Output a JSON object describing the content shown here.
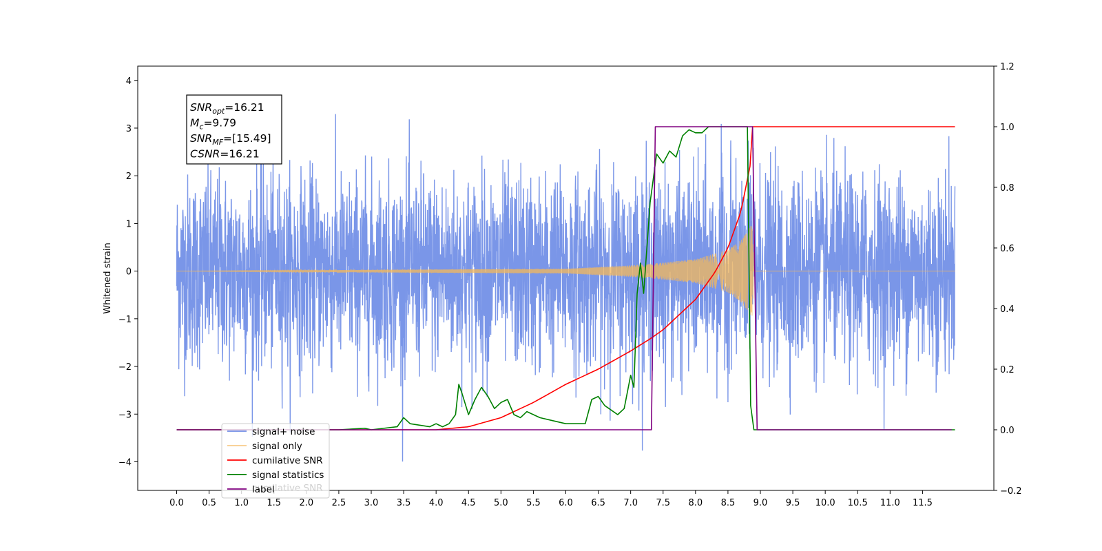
{
  "chart_data": {
    "type": "line",
    "ylabel": "Whitened strain",
    "xlim": [
      -0.6,
      12.6
    ],
    "ylim": [
      -4.6,
      4.3
    ],
    "y2lim": [
      -0.2,
      1.2
    ],
    "x_ticks": [
      0.0,
      0.5,
      1.0,
      1.5,
      2.0,
      2.5,
      3.0,
      3.5,
      4.0,
      4.5,
      5.0,
      5.5,
      6.0,
      6.5,
      7.0,
      7.5,
      8.0,
      8.5,
      9.0,
      9.5,
      10.0,
      10.5,
      11.0,
      11.5
    ],
    "x_tick_labels": [
      "0.0",
      "0.5",
      "1.0",
      "1.5",
      "2.0",
      "2.5",
      "3.0",
      "3.5",
      "4.0",
      "4.5",
      "5.0",
      "5.5",
      "6.0",
      "6.5",
      "7.0",
      "7.5",
      "8.0",
      "8.5",
      "9.0",
      "9.5",
      "10.0",
      "10.5",
      "11.0",
      "11.5"
    ],
    "y_ticks": [
      -4,
      -3,
      -2,
      -1,
      0,
      1,
      2,
      3,
      4
    ],
    "y_tick_labels": [
      "−4",
      "−3",
      "−2",
      "−1",
      "0",
      "1",
      "2",
      "3",
      "4"
    ],
    "y2_ticks": [
      -0.2,
      0.0,
      0.2,
      0.4,
      0.6,
      0.8,
      1.0,
      1.2
    ],
    "y2_tick_labels": [
      "−0.2",
      "0.0",
      "0.2",
      "0.4",
      "0.6",
      "0.8",
      "1.0",
      "1.2"
    ],
    "legend_placement": "lower-left",
    "grid": false,
    "series": [
      {
        "name": "signal+ noise",
        "axis": "left",
        "color": "#6f8de6",
        "noise_sigma": 1.0,
        "noise_range": [
          -4.1,
          3.85
        ],
        "x_range": [
          0.0,
          12.0
        ],
        "chirp": {
          "start": 4.0,
          "merger": 8.88,
          "peak_amplitude": 1.0
        }
      },
      {
        "name": "signal only",
        "axis": "left",
        "color": "#f5b85a",
        "x_range": [
          0.0,
          12.0
        ],
        "chirp": {
          "start": 4.0,
          "merger": 8.88,
          "peak_amplitude": 1.0
        },
        "amplitude_envelope": {
          "x": [
            0,
            6.0,
            7.0,
            7.5,
            8.0,
            8.5,
            8.7,
            8.88,
            8.9,
            12.0
          ],
          "y": [
            0.0,
            0.05,
            0.12,
            0.18,
            0.25,
            0.45,
            0.65,
            1.0,
            0.0,
            0.0
          ]
        }
      },
      {
        "name": "cumilative SNR",
        "axis": "right",
        "color": "#ff0000",
        "x": [
          0.0,
          4.0,
          4.5,
          5.0,
          5.5,
          6.0,
          6.5,
          7.0,
          7.3,
          7.5,
          8.0,
          8.3,
          8.5,
          8.7,
          8.85,
          8.88,
          12.0
        ],
        "y": [
          0.0,
          0.0,
          0.01,
          0.04,
          0.09,
          0.15,
          0.2,
          0.26,
          0.3,
          0.33,
          0.43,
          0.52,
          0.6,
          0.72,
          0.88,
          1.0,
          1.0
        ]
      },
      {
        "name": "signal statistics",
        "axis": "right",
        "color": "#008000",
        "x": [
          0.0,
          2.5,
          2.9,
          3.0,
          3.4,
          3.5,
          3.6,
          3.9,
          4.0,
          4.1,
          4.2,
          4.3,
          4.35,
          4.4,
          4.5,
          4.6,
          4.7,
          4.8,
          4.9,
          5.0,
          5.1,
          5.2,
          5.3,
          5.4,
          5.5,
          5.6,
          5.8,
          6.0,
          6.3,
          6.4,
          6.5,
          6.6,
          6.8,
          6.9,
          7.0,
          7.05,
          7.1,
          7.15,
          7.2,
          7.3,
          7.4,
          7.5,
          7.6,
          7.7,
          7.8,
          7.9,
          8.0,
          8.1,
          8.2,
          8.3,
          8.4,
          8.5,
          8.6,
          8.7,
          8.8,
          8.85,
          8.9,
          9.0,
          12.0
        ],
        "y": [
          0.0,
          0.0,
          0.005,
          0.0,
          0.01,
          0.04,
          0.02,
          0.01,
          0.02,
          0.01,
          0.02,
          0.05,
          0.15,
          0.12,
          0.05,
          0.1,
          0.14,
          0.11,
          0.07,
          0.09,
          0.1,
          0.05,
          0.04,
          0.06,
          0.05,
          0.04,
          0.03,
          0.02,
          0.02,
          0.1,
          0.11,
          0.08,
          0.05,
          0.07,
          0.18,
          0.14,
          0.45,
          0.55,
          0.45,
          0.75,
          0.91,
          0.88,
          0.92,
          0.9,
          0.97,
          0.99,
          0.98,
          0.98,
          1.0,
          1.0,
          1.0,
          1.0,
          1.0,
          1.0,
          1.0,
          0.08,
          0.0,
          0.0,
          0.0
        ]
      },
      {
        "name": "label",
        "axis": "right",
        "color": "#800080",
        "x": [
          0.0,
          7.32,
          7.38,
          8.88,
          8.95,
          11.95
        ],
        "y": [
          0.0,
          0.0,
          1.0,
          1.0,
          0.0,
          0.0
        ]
      }
    ],
    "annotation": {
      "lines": [
        {
          "sym": "SNR",
          "sub": "opt",
          "value": "=16.21"
        },
        {
          "sym": "M",
          "sub": "c",
          "value": "=9.79"
        },
        {
          "sym": "SNR",
          "sub": "MF",
          "value": "=[15.49]"
        },
        {
          "sym": "CSNR",
          "sub": "",
          "value": "=16.21"
        }
      ]
    },
    "legend_overlap_text": "cumilative SNR"
  }
}
